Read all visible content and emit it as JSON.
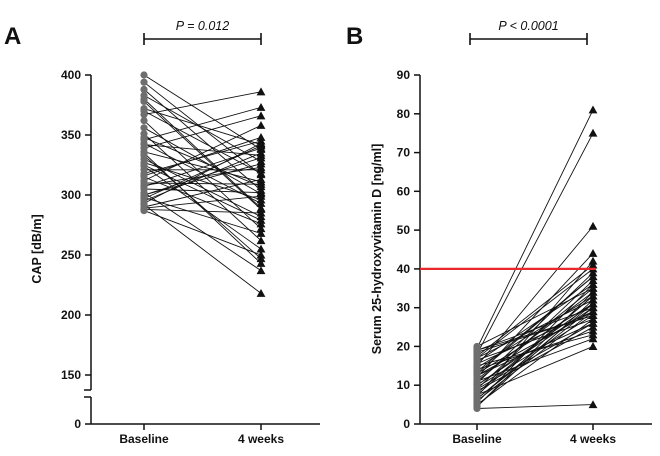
{
  "chart_data": [
    {
      "type": "paired_line",
      "panel_label": "A",
      "ylabel": "CAP [dB/m]",
      "categories": [
        "Baseline",
        "4 weeks"
      ],
      "yticks": [
        "0",
        "150",
        "200",
        "250",
        "300",
        "350",
        "400"
      ],
      "ylim": [
        0,
        400
      ],
      "axis_break": [
        0,
        140
      ],
      "p_value": "P = 0.012",
      "markers": [
        "circle",
        "triangle"
      ],
      "pairs": [
        [
          400,
          338
        ],
        [
          394,
          317
        ],
        [
          388,
          304
        ],
        [
          383,
          328
        ],
        [
          378,
          288
        ],
        [
          372,
          342
        ],
        [
          367,
          386
        ],
        [
          362,
          272
        ],
        [
          356,
          301
        ],
        [
          351,
          262
        ],
        [
          346,
          373
        ],
        [
          342,
          333
        ],
        [
          339,
          366
        ],
        [
          336,
          311
        ],
        [
          333,
          247
        ],
        [
          330,
          282
        ],
        [
          327,
          296
        ],
        [
          324,
          255
        ],
        [
          321,
          321
        ],
        [
          318,
          345
        ],
        [
          315,
          276
        ],
        [
          312,
          358
        ],
        [
          310,
          309
        ],
        [
          307,
          339
        ],
        [
          305,
          302
        ],
        [
          302,
          237
        ],
        [
          300,
          326
        ],
        [
          298,
          268
        ],
        [
          295,
          335
        ],
        [
          293,
          343
        ],
        [
          292,
          218
        ],
        [
          290,
          313
        ],
        [
          289,
          299
        ],
        [
          288,
          285
        ],
        [
          287,
          250
        ],
        [
          300,
          331
        ],
        [
          343,
          293
        ],
        [
          325,
          279
        ],
        [
          316,
          348
        ],
        [
          335,
          243
        ],
        [
          308,
          323
        ],
        [
          370,
          318
        ],
        [
          348,
          307
        ],
        [
          297,
          341
        ],
        [
          380,
          289
        ]
      ]
    },
    {
      "type": "paired_line",
      "panel_label": "B",
      "ylabel": "Serum 25-hydroxyvitamin  D [ng/ml]",
      "categories": [
        "Baseline",
        "4 weeks"
      ],
      "yticks": [
        "0",
        "10",
        "20",
        "30",
        "40",
        "50",
        "60",
        "70",
        "80",
        "90"
      ],
      "ylim": [
        0,
        90
      ],
      "reference_line": {
        "y": 40,
        "color": "#e8282b"
      },
      "p_value": "P < 0.0001",
      "markers": [
        "circle",
        "triangle"
      ],
      "pairs": [
        [
          20.0,
          35
        ],
        [
          19.5,
          81
        ],
        [
          19.0,
          30
        ],
        [
          18.5,
          28
        ],
        [
          18.0,
          75
        ],
        [
          17.5,
          41
        ],
        [
          17.0,
          32
        ],
        [
          16.5,
          27
        ],
        [
          16.0,
          36
        ],
        [
          15.5,
          29
        ],
        [
          15.0,
          51
        ],
        [
          14.5,
          33
        ],
        [
          14.0,
          24
        ],
        [
          13.5,
          38
        ],
        [
          13.0,
          31
        ],
        [
          12.5,
          26
        ],
        [
          12.0,
          44
        ],
        [
          11.5,
          34
        ],
        [
          11.0,
          22
        ],
        [
          10.5,
          39
        ],
        [
          10.0,
          30
        ],
        [
          9.5,
          28
        ],
        [
          9.0,
          37
        ],
        [
          8.5,
          25
        ],
        [
          8.0,
          33
        ],
        [
          7.5,
          20
        ],
        [
          7.0,
          42
        ],
        [
          6.5,
          31
        ],
        [
          6.0,
          29
        ],
        [
          5.5,
          36
        ],
        [
          5.0,
          27
        ],
        [
          4.5,
          34
        ],
        [
          4.0,
          5
        ],
        [
          4.5,
          32
        ],
        [
          6.5,
          30
        ],
        [
          9.0,
          26
        ],
        [
          11.0,
          35
        ],
        [
          13.0,
          38
        ],
        [
          15.0,
          23
        ],
        [
          17.0,
          40
        ],
        [
          19.0,
          28
        ],
        [
          7.5,
          33
        ],
        [
          10.0,
          31
        ],
        [
          12.5,
          29
        ]
      ]
    }
  ]
}
